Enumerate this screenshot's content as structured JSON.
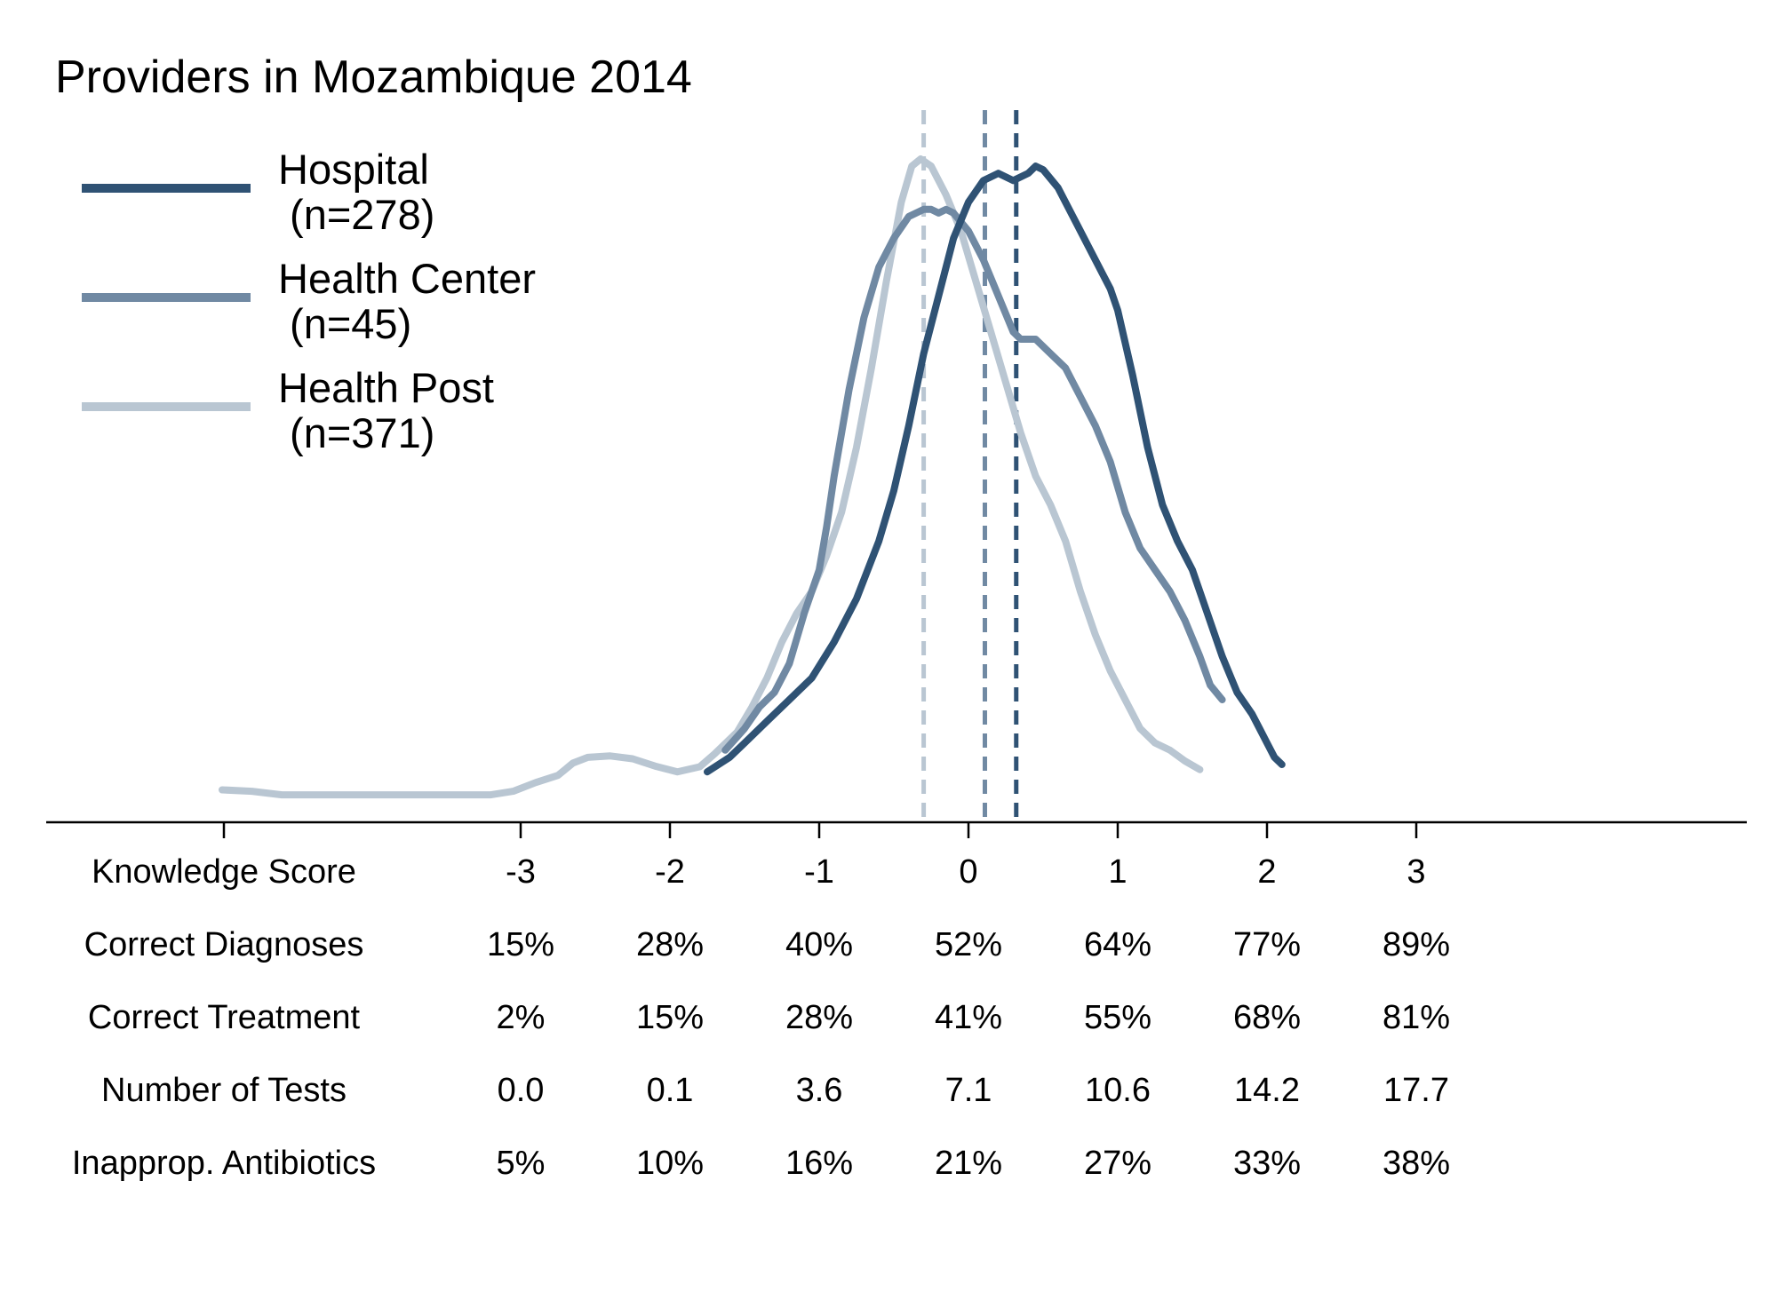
{
  "chart_data": {
    "type": "line",
    "title": "Providers in Mozambique 2014",
    "xlim": [
      -5,
      5.2
    ],
    "ylim": [
      0,
      0.95
    ],
    "legend_position": "top-left",
    "colors": {
      "Hospital": "#2f5274",
      "Health Center": "#7089a3",
      "Health Post": "#b9c6d2",
      "axis": "#000000"
    },
    "series": [
      {
        "name": "Hospital",
        "legend_line1": "Hospital",
        "legend_line2": " (n=278)",
        "color": "#2f5274",
        "mean": 0.32,
        "points": [
          [
            -1.75,
            0.07
          ],
          [
            -1.6,
            0.09
          ],
          [
            -1.5,
            0.11
          ],
          [
            -1.35,
            0.14
          ],
          [
            -1.2,
            0.17
          ],
          [
            -1.05,
            0.2
          ],
          [
            -0.9,
            0.25
          ],
          [
            -0.75,
            0.31
          ],
          [
            -0.6,
            0.39
          ],
          [
            -0.5,
            0.46
          ],
          [
            -0.4,
            0.55
          ],
          [
            -0.3,
            0.65
          ],
          [
            -0.2,
            0.73
          ],
          [
            -0.1,
            0.81
          ],
          [
            0.0,
            0.86
          ],
          [
            0.1,
            0.89
          ],
          [
            0.2,
            0.9
          ],
          [
            0.3,
            0.89
          ],
          [
            0.4,
            0.9
          ],
          [
            0.45,
            0.91
          ],
          [
            0.5,
            0.905
          ],
          [
            0.6,
            0.88
          ],
          [
            0.7,
            0.84
          ],
          [
            0.8,
            0.8
          ],
          [
            0.9,
            0.76
          ],
          [
            0.95,
            0.74
          ],
          [
            1.0,
            0.71
          ],
          [
            1.1,
            0.62
          ],
          [
            1.2,
            0.52
          ],
          [
            1.3,
            0.44
          ],
          [
            1.4,
            0.39
          ],
          [
            1.5,
            0.35
          ],
          [
            1.6,
            0.29
          ],
          [
            1.7,
            0.23
          ],
          [
            1.8,
            0.18
          ],
          [
            1.9,
            0.15
          ],
          [
            1.95,
            0.13
          ],
          [
            2.0,
            0.11
          ],
          [
            2.05,
            0.09
          ],
          [
            2.1,
            0.08
          ]
        ]
      },
      {
        "name": "Health Center",
        "legend_line1": "Health Center",
        "legend_line2": " (n=45)",
        "color": "#7089a3",
        "mean": 0.11,
        "points": [
          [
            -1.63,
            0.1
          ],
          [
            -1.5,
            0.13
          ],
          [
            -1.4,
            0.16
          ],
          [
            -1.3,
            0.18
          ],
          [
            -1.2,
            0.22
          ],
          [
            -1.1,
            0.29
          ],
          [
            -1.0,
            0.35
          ],
          [
            -0.95,
            0.41
          ],
          [
            -0.9,
            0.48
          ],
          [
            -0.8,
            0.6
          ],
          [
            -0.7,
            0.7
          ],
          [
            -0.6,
            0.77
          ],
          [
            -0.5,
            0.81
          ],
          [
            -0.4,
            0.84
          ],
          [
            -0.3,
            0.85
          ],
          [
            -0.25,
            0.85
          ],
          [
            -0.2,
            0.845
          ],
          [
            -0.15,
            0.85
          ],
          [
            -0.1,
            0.845
          ],
          [
            0.0,
            0.82
          ],
          [
            0.1,
            0.78
          ],
          [
            0.2,
            0.73
          ],
          [
            0.3,
            0.68
          ],
          [
            0.35,
            0.67
          ],
          [
            0.45,
            0.67
          ],
          [
            0.55,
            0.65
          ],
          [
            0.65,
            0.63
          ],
          [
            0.75,
            0.59
          ],
          [
            0.85,
            0.55
          ],
          [
            0.95,
            0.5
          ],
          [
            1.05,
            0.43
          ],
          [
            1.15,
            0.38
          ],
          [
            1.25,
            0.35
          ],
          [
            1.35,
            0.32
          ],
          [
            1.45,
            0.28
          ],
          [
            1.55,
            0.23
          ],
          [
            1.62,
            0.19
          ],
          [
            1.7,
            0.17
          ]
        ]
      },
      {
        "name": "Health Post",
        "legend_line1": "Health Post",
        "legend_line2": " (n=371)",
        "color": "#b9c6d2",
        "mean": -0.3,
        "points": [
          [
            -5.0,
            0.045
          ],
          [
            -4.8,
            0.043
          ],
          [
            -4.6,
            0.038
          ],
          [
            -4.2,
            0.038
          ],
          [
            -3.8,
            0.038
          ],
          [
            -3.4,
            0.038
          ],
          [
            -3.2,
            0.038
          ],
          [
            -3.05,
            0.043
          ],
          [
            -2.9,
            0.055
          ],
          [
            -2.75,
            0.065
          ],
          [
            -2.65,
            0.082
          ],
          [
            -2.55,
            0.09
          ],
          [
            -2.4,
            0.092
          ],
          [
            -2.25,
            0.088
          ],
          [
            -2.1,
            0.078
          ],
          [
            -1.95,
            0.07
          ],
          [
            -1.8,
            0.077
          ],
          [
            -1.7,
            0.095
          ],
          [
            -1.55,
            0.125
          ],
          [
            -1.45,
            0.16
          ],
          [
            -1.35,
            0.2
          ],
          [
            -1.25,
            0.25
          ],
          [
            -1.15,
            0.29
          ],
          [
            -1.05,
            0.32
          ],
          [
            -0.95,
            0.37
          ],
          [
            -0.85,
            0.43
          ],
          [
            -0.75,
            0.52
          ],
          [
            -0.65,
            0.63
          ],
          [
            -0.55,
            0.75
          ],
          [
            -0.45,
            0.86
          ],
          [
            -0.38,
            0.91
          ],
          [
            -0.32,
            0.92
          ],
          [
            -0.25,
            0.91
          ],
          [
            -0.15,
            0.87
          ],
          [
            -0.05,
            0.82
          ],
          [
            0.05,
            0.75
          ],
          [
            0.15,
            0.68
          ],
          [
            0.25,
            0.61
          ],
          [
            0.35,
            0.54
          ],
          [
            0.45,
            0.48
          ],
          [
            0.55,
            0.44
          ],
          [
            0.65,
            0.39
          ],
          [
            0.75,
            0.32
          ],
          [
            0.85,
            0.26
          ],
          [
            0.95,
            0.21
          ],
          [
            1.05,
            0.17
          ],
          [
            1.15,
            0.13
          ],
          [
            1.25,
            0.11
          ],
          [
            1.35,
            0.1
          ],
          [
            1.45,
            0.085
          ],
          [
            1.55,
            0.073
          ]
        ]
      }
    ],
    "table": {
      "x_positions": [
        -3,
        -2,
        -1,
        0,
        1,
        2,
        3
      ],
      "rows": [
        {
          "label": "Knowledge Score",
          "values": [
            "-3",
            "-2",
            "-1",
            "0",
            "1",
            "2",
            "3"
          ]
        },
        {
          "label": "Correct Diagnoses",
          "values": [
            "15%",
            "28%",
            "40%",
            "52%",
            "64%",
            "77%",
            "89%"
          ]
        },
        {
          "label": "Correct Treatment",
          "values": [
            "2%",
            "15%",
            "28%",
            "41%",
            "55%",
            "68%",
            "81%"
          ]
        },
        {
          "label": "Number of Tests",
          "values": [
            "0.0",
            "0.1",
            "3.6",
            "7.1",
            "10.6",
            "14.2",
            "17.7"
          ]
        },
        {
          "label": "Inapprop. Antibiotics",
          "values": [
            "5%",
            "10%",
            "16%",
            "21%",
            "27%",
            "33%",
            "38%"
          ]
        }
      ]
    }
  }
}
